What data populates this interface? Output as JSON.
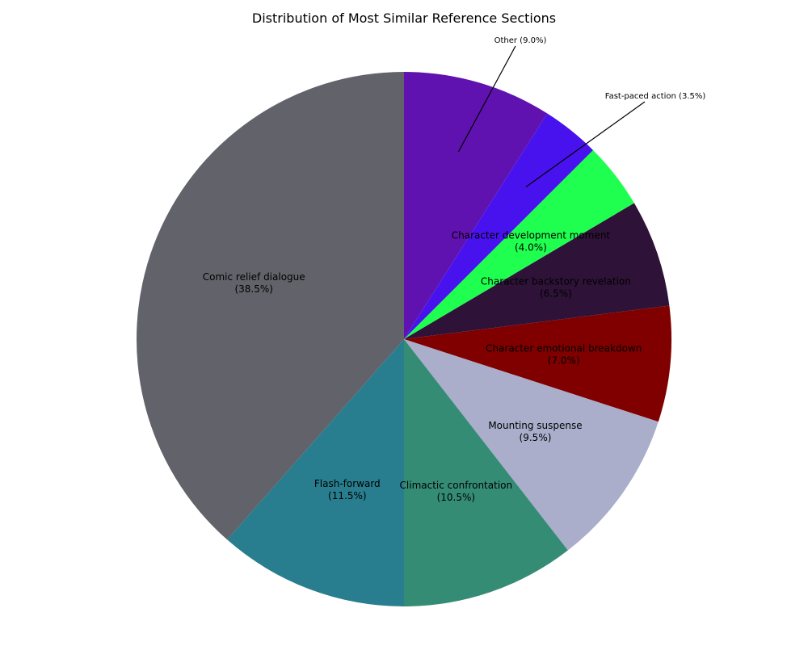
{
  "chart_data": {
    "type": "pie",
    "title": "Distribution of Most Similar Reference Sections",
    "start_angle_deg": 90,
    "direction": "clockwise",
    "slices": [
      {
        "label": "Other",
        "value": 9.0,
        "color": "#6012B0",
        "display": "Other (9.0%)",
        "label_placement": "outside"
      },
      {
        "label": "Fast-paced action",
        "value": 3.5,
        "color": "#4812EE",
        "display": "Fast-paced action (3.5%)",
        "label_placement": "outside"
      },
      {
        "label": "Character development moment",
        "value": 4.0,
        "color": "#1EFF50",
        "display_line1": "Character development moment",
        "display_line2": "(4.0%)",
        "label_placement": "inside"
      },
      {
        "label": "Character backstory revelation",
        "value": 6.5,
        "color": "#2E1238",
        "display_line1": "Character backstory revelation",
        "display_line2": "(6.5%)",
        "label_placement": "inside"
      },
      {
        "label": "Character emotional breakdown",
        "value": 7.0,
        "color": "#800000",
        "display_line1": "Character emotional breakdown",
        "display_line2": "(7.0%)",
        "label_placement": "inside"
      },
      {
        "label": "Mounting suspense",
        "value": 9.5,
        "color": "#AAAECB",
        "display_line1": "Mounting suspense",
        "display_line2": "(9.5%)",
        "label_placement": "inside"
      },
      {
        "label": "Climactic confrontation",
        "value": 10.5,
        "color": "#358C74",
        "display_line1": "Climactic confrontation",
        "display_line2": "(10.5%)",
        "label_placement": "inside"
      },
      {
        "label": "Flash-forward",
        "value": 11.5,
        "color": "#287E8E",
        "display_line1": "Flash-forward",
        "display_line2": "(11.5%)",
        "label_placement": "inside"
      },
      {
        "label": "Comic relief dialogue",
        "value": 38.5,
        "color": "#62626A",
        "display_line1": "Comic relief dialogue",
        "display_line2": "(38.5%)",
        "label_placement": "inside"
      }
    ]
  }
}
